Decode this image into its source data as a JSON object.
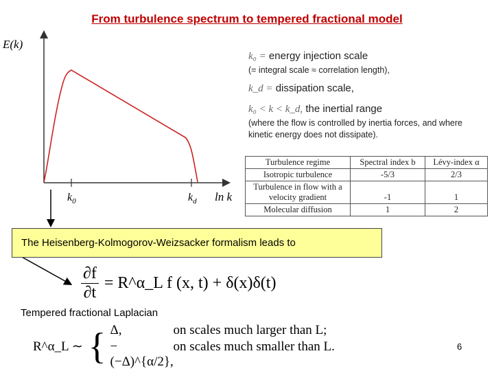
{
  "title": "From turbulence spectrum to tempered fractional model",
  "spectrum_plot": {
    "y_axis_label": "E(k)",
    "x_axis_label": "ln k",
    "tick_k0": "k",
    "tick_k0_sub": "0",
    "tick_kd": "k",
    "tick_kd_sub": "d",
    "curve_color": "#cc2222"
  },
  "notes": {
    "k0_symbol": "k₀ =",
    "k0_text": "energy injection scale",
    "k0_detail": "(= integral scale ≈ correlation length),",
    "kd_symbol": "k_d =",
    "kd_text": "dissipation scale,",
    "inertial_symbol": "k₀ < k < k_d,",
    "inertial_text": "the inertial range",
    "inertial_detail_1": "(where the flow is controlled by inertia forces, and where",
    "inertial_detail_2": "kinetic energy does not dissipate)."
  },
  "regime_table": {
    "headers": [
      "Turbulence regime",
      "Spectral index b",
      "Lévy-index α"
    ],
    "rows": [
      [
        "Isotropic turbulence",
        "-5/3",
        "2/3"
      ],
      [
        "Turbulence in flow with a velocity gradient",
        "-1",
        "1"
      ],
      [
        "Molecular diffusion",
        "1",
        "2"
      ]
    ]
  },
  "hk_box_text": "The Heisenberg-Kolmogorov-Weizsacker formalism leads to",
  "equation_1": {
    "numerator": "∂f",
    "denominator": "∂t",
    "rhs": "= R^α_L f (x, t) + δ(x)δ(t)"
  },
  "tempered_label": "Tempered fractional Laplacian",
  "equation_2": {
    "lhs": "R^α_L ∼",
    "case_1_expr": "Δ,",
    "case_1_cond": "on scales much larger than L;",
    "case_2_expr": "−(−Δ)^{α/2},",
    "case_2_cond": "on scales much smaller than L."
  },
  "page_number": "6",
  "colors": {
    "title": "#c00000",
    "box_fill": "#ffff99"
  }
}
